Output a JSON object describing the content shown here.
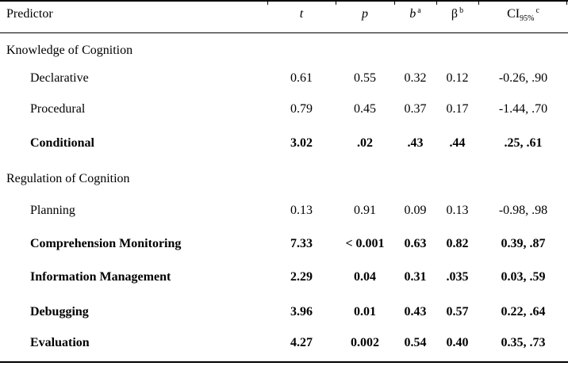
{
  "table": {
    "header": {
      "predictor": "Predictor",
      "t": "t",
      "p": "p",
      "b": "b",
      "b_sup": "a",
      "beta": "β",
      "beta_sup": "b",
      "ci": "CI",
      "ci_sub": "95%",
      "ci_sup": "c"
    },
    "rows": [
      {
        "type": "section",
        "bold": false,
        "predictor": "Knowledge of Cognition"
      },
      {
        "type": "data",
        "bold": false,
        "predictor": "Declarative",
        "t": "0.61",
        "p": "0.55",
        "b": "0.32",
        "beta": "0.12",
        "ci": "-0.26, .90"
      },
      {
        "type": "data",
        "bold": false,
        "predictor": "Procedural",
        "t": "0.79",
        "p": "0.45",
        "b": "0.37",
        "beta": "0.17",
        "ci": "-1.44, .70"
      },
      {
        "type": "data",
        "bold": true,
        "predictor": "Conditional",
        "t": "3.02",
        "p": ".02",
        "b": ".43",
        "beta": ".44",
        "ci": ".25, .61"
      },
      {
        "type": "section",
        "bold": false,
        "predictor": "Regulation of Cognition"
      },
      {
        "type": "data",
        "bold": false,
        "predictor": "Planning",
        "t": "0.13",
        "p": "0.91",
        "b": "0.09",
        "beta": "0.13",
        "ci": "-0.98, .98"
      },
      {
        "type": "data",
        "bold": true,
        "predictor": "Comprehension Monitoring",
        "t": "7.33",
        "p": "< 0.001",
        "b": "0.63",
        "beta": "0.82",
        "ci": "0.39, .87"
      },
      {
        "type": "data",
        "bold": true,
        "predictor": "Information Management",
        "t": "2.29",
        "p": "0.04",
        "b": "0.31",
        "beta": ".035",
        "ci": "0.03, .59"
      },
      {
        "type": "data",
        "bold": true,
        "predictor": "Debugging",
        "t": "3.96",
        "p": "0.01",
        "b": "0.43",
        "beta": "0.57",
        "ci": "0.22, .64"
      },
      {
        "type": "data",
        "bold": true,
        "predictor": "Evaluation",
        "t": "4.27",
        "p": "0.002",
        "b": "0.54",
        "beta": "0.40",
        "ci": "0.35, .73"
      }
    ],
    "colors": {
      "text": "#000000",
      "background": "#ffffff",
      "rule": "#000000"
    }
  }
}
